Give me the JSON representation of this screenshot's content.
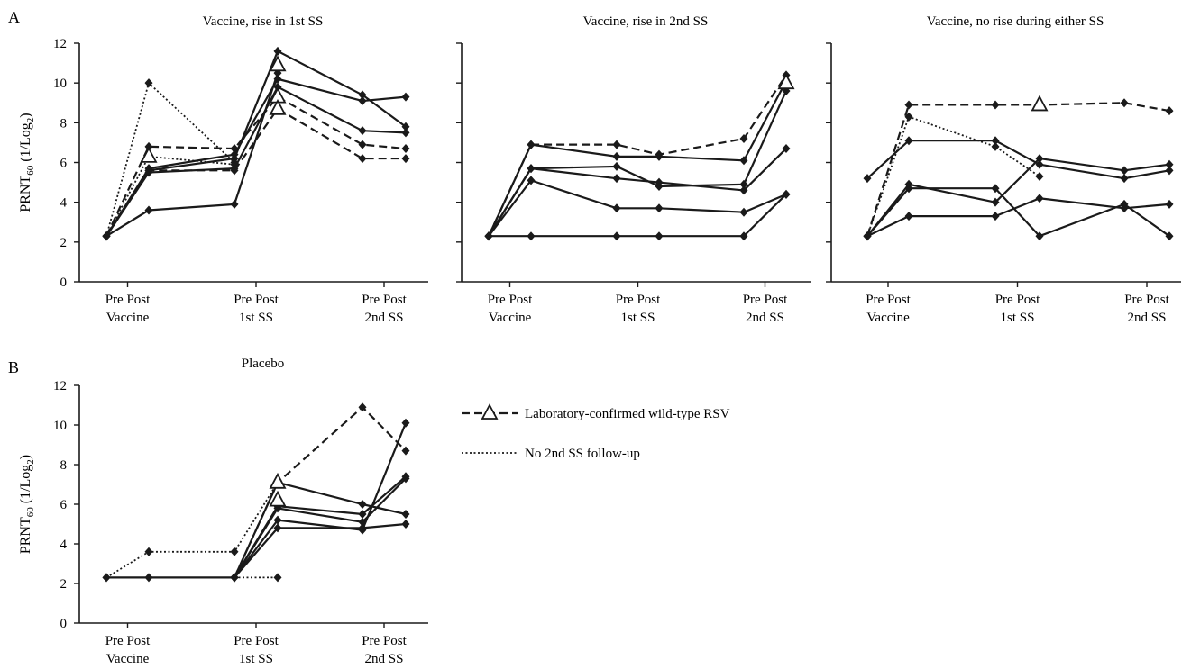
{
  "figure": {
    "panel_a_letter": "A",
    "panel_b_letter": "B",
    "ylabel_main": "PRNT",
    "ylabel_sub": "60",
    "ylabel_rest_open": " (1/Log",
    "ylabel_rest_sub": "2",
    "ylabel_rest_close": ")",
    "tick_pair_label": "Pre Post",
    "group_labels": [
      "Vaccine",
      "1st SS",
      "2nd SS"
    ],
    "legend": [
      {
        "label": "Laboratory-confirmed wild-type RSV",
        "style": "dashed",
        "marker": "triangle"
      },
      {
        "label": "No 2nd SS follow-up",
        "style": "dotted",
        "marker": "none"
      }
    ],
    "colors": {
      "line": "#1a1a1a",
      "background": "#ffffff"
    }
  },
  "chart_data": [
    {
      "type": "line",
      "panel": "A",
      "title": "Vaccine, rise in 1st SS",
      "ylim": [
        0,
        12
      ],
      "yticks": [
        0,
        2,
        4,
        6,
        8,
        10,
        12
      ],
      "x_positions": [
        "Vaccine Pre",
        "Vaccine Post",
        "1st SS Pre",
        "1st SS Post",
        "2nd SS Pre",
        "2nd SS Post"
      ],
      "series": [
        {
          "style": "solid",
          "points": [
            [
              0,
              2.3
            ],
            [
              1,
              5.6
            ],
            [
              2,
              6.2
            ],
            [
              3,
              11.6
            ],
            [
              4,
              9.4
            ],
            [
              5,
              7.8
            ]
          ]
        },
        {
          "style": "solid",
          "points": [
            [
              0,
              2.3
            ],
            [
              1,
              5.7
            ],
            [
              2,
              6.4
            ],
            [
              3,
              10.2
            ],
            [
              4,
              9.1
            ],
            [
              5,
              9.3
            ]
          ]
        },
        {
          "style": "solid",
          "points": [
            [
              0,
              2.3
            ],
            [
              1,
              5.5
            ],
            [
              2,
              5.7
            ],
            [
              3,
              9.8
            ],
            [
              4,
              7.6
            ],
            [
              5,
              7.5
            ]
          ]
        },
        {
          "style": "solid",
          "points": [
            [
              0,
              2.3
            ],
            [
              1,
              3.6
            ],
            [
              2,
              3.9
            ],
            [
              3,
              10.5
            ]
          ]
        },
        {
          "style": "dashed",
          "points": [
            [
              0,
              2.3
            ],
            [
              1,
              6.8
            ],
            [
              2,
              6.7
            ],
            [
              3,
              9.3
            ],
            [
              4,
              6.9
            ],
            [
              5,
              6.7
            ]
          ]
        },
        {
          "style": "dashed",
          "points": [
            [
              0,
              2.3
            ],
            [
              1,
              5.6
            ],
            [
              2,
              5.6
            ],
            [
              3,
              8.7
            ],
            [
              4,
              6.2
            ],
            [
              5,
              6.2
            ]
          ]
        },
        {
          "style": "dotted",
          "points": [
            [
              0,
              2.3
            ],
            [
              1,
              10.0
            ],
            [
              2,
              6.0
            ]
          ]
        },
        {
          "style": "dotted",
          "points": [
            [
              0,
              2.3
            ],
            [
              1,
              6.3
            ],
            [
              2,
              5.9
            ]
          ]
        }
      ],
      "triangles": [
        [
          1,
          6.3
        ],
        [
          3,
          10.9
        ],
        [
          3,
          9.3
        ],
        [
          3,
          8.7
        ]
      ]
    },
    {
      "type": "line",
      "panel": "A",
      "title": "Vaccine, rise in 2nd SS",
      "ylim": [
        0,
        12
      ],
      "yticks": [
        0,
        2,
        4,
        6,
        8,
        10,
        12
      ],
      "x_positions": [
        "Vaccine Pre",
        "Vaccine Post",
        "1st SS Pre",
        "1st SS Post",
        "2nd SS Pre",
        "2nd SS Post"
      ],
      "series": [
        {
          "style": "dashed",
          "points": [
            [
              0,
              2.3
            ],
            [
              1,
              6.9
            ],
            [
              2,
              6.9
            ],
            [
              3,
              6.4
            ],
            [
              4,
              7.2
            ],
            [
              5,
              10.4
            ]
          ]
        },
        {
          "style": "solid",
          "points": [
            [
              0,
              2.3
            ],
            [
              1,
              6.9
            ],
            [
              2,
              6.3
            ],
            [
              3,
              6.3
            ],
            [
              4,
              6.1
            ],
            [
              5,
              10.1
            ]
          ]
        },
        {
          "style": "solid",
          "points": [
            [
              0,
              2.3
            ],
            [
              1,
              5.7
            ],
            [
              2,
              5.8
            ],
            [
              3,
              4.8
            ],
            [
              4,
              4.9
            ],
            [
              5,
              9.6
            ]
          ]
        },
        {
          "style": "solid",
          "points": [
            [
              0,
              2.3
            ],
            [
              1,
              5.7
            ],
            [
              2,
              5.2
            ],
            [
              3,
              5.0
            ],
            [
              4,
              4.6
            ],
            [
              5,
              6.7
            ]
          ]
        },
        {
          "style": "solid",
          "points": [
            [
              0,
              2.3
            ],
            [
              1,
              5.1
            ],
            [
              2,
              3.7
            ],
            [
              3,
              3.7
            ],
            [
              4,
              3.5
            ],
            [
              5,
              4.4
            ]
          ]
        },
        {
          "style": "solid",
          "points": [
            [
              0,
              2.3
            ],
            [
              1,
              2.3
            ],
            [
              2,
              2.3
            ],
            [
              3,
              2.3
            ],
            [
              4,
              2.3
            ],
            [
              5,
              4.4
            ]
          ]
        }
      ],
      "triangles": [
        [
          5,
          10.0
        ]
      ]
    },
    {
      "type": "line",
      "panel": "A",
      "title": "Vaccine, no rise during either SS",
      "ylim": [
        0,
        12
      ],
      "yticks": [
        0,
        2,
        4,
        6,
        8,
        10,
        12
      ],
      "x_positions": [
        "Vaccine Pre",
        "Vaccine Post",
        "1st SS Pre",
        "1st SS Post",
        "2nd SS Pre",
        "2nd SS Post"
      ],
      "series": [
        {
          "style": "dashed",
          "points": [
            [
              0,
              2.3
            ],
            [
              1,
              8.9
            ],
            [
              2,
              8.9
            ],
            [
              3,
              8.9
            ],
            [
              4,
              9.0
            ],
            [
              5,
              8.6
            ]
          ]
        },
        {
          "style": "dotted",
          "points": [
            [
              0,
              2.3
            ],
            [
              1,
              8.3
            ],
            [
              2,
              6.8
            ],
            [
              3,
              5.3
            ]
          ]
        },
        {
          "style": "solid",
          "points": [
            [
              0,
              5.2
            ],
            [
              1,
              7.1
            ],
            [
              2,
              7.1
            ],
            [
              3,
              5.9
            ],
            [
              4,
              5.2
            ],
            [
              5,
              5.6
            ]
          ]
        },
        {
          "style": "solid",
          "points": [
            [
              0,
              2.3
            ],
            [
              1,
              4.9
            ],
            [
              2,
              4.0
            ],
            [
              3,
              6.2
            ],
            [
              4,
              5.6
            ],
            [
              5,
              5.9
            ]
          ]
        },
        {
          "style": "solid",
          "points": [
            [
              0,
              2.3
            ],
            [
              1,
              4.7
            ],
            [
              2,
              4.7
            ],
            [
              3,
              2.3
            ],
            [
              4,
              3.9
            ],
            [
              5,
              2.3
            ]
          ]
        },
        {
          "style": "solid",
          "points": [
            [
              0,
              2.3
            ],
            [
              1,
              3.3
            ],
            [
              2,
              3.3
            ],
            [
              3,
              4.2
            ],
            [
              4,
              3.7
            ],
            [
              5,
              3.9
            ]
          ]
        }
      ],
      "triangles": [
        [
          3,
          8.9
        ]
      ]
    },
    {
      "type": "line",
      "panel": "B",
      "title": "Placebo",
      "ylim": [
        0,
        12
      ],
      "yticks": [
        0,
        2,
        4,
        6,
        8,
        10,
        12
      ],
      "x_positions": [
        "Vaccine Pre",
        "Vaccine Post",
        "1st SS Pre",
        "1st SS Post",
        "2nd SS Pre",
        "2nd SS Post"
      ],
      "series": [
        {
          "style": "dashed",
          "points": [
            [
              2,
              2.3
            ],
            [
              3,
              7.1
            ],
            [
              4,
              10.9
            ],
            [
              5,
              8.7
            ]
          ]
        },
        {
          "style": "solid",
          "points": [
            [
              0,
              2.3
            ],
            [
              1,
              2.3
            ],
            [
              2,
              2.3
            ],
            [
              3,
              7.1
            ],
            [
              4,
              6.0
            ],
            [
              5,
              5.5
            ]
          ]
        },
        {
          "style": "solid",
          "points": [
            [
              2,
              2.3
            ],
            [
              3,
              5.9
            ],
            [
              4,
              5.5
            ],
            [
              5,
              7.4
            ]
          ]
        },
        {
          "style": "solid",
          "points": [
            [
              2,
              2.3
            ],
            [
              3,
              5.8
            ],
            [
              4,
              5.1
            ],
            [
              5,
              7.3
            ]
          ]
        },
        {
          "style": "solid",
          "points": [
            [
              2,
              2.3
            ],
            [
              3,
              5.2
            ],
            [
              4,
              4.7
            ],
            [
              5,
              10.1
            ]
          ]
        },
        {
          "style": "solid",
          "points": [
            [
              2,
              2.3
            ],
            [
              3,
              4.8
            ],
            [
              4,
              4.8
            ],
            [
              5,
              5.0
            ]
          ]
        },
        {
          "style": "dotted",
          "points": [
            [
              0,
              2.3
            ],
            [
              1,
              3.6
            ],
            [
              2,
              3.6
            ],
            [
              3,
              7.1
            ]
          ]
        },
        {
          "style": "dotted",
          "points": [
            [
              2,
              2.3
            ],
            [
              3,
              2.3
            ]
          ]
        }
      ],
      "triangles": [
        [
          3,
          7.1
        ],
        [
          3,
          6.2
        ]
      ]
    }
  ]
}
